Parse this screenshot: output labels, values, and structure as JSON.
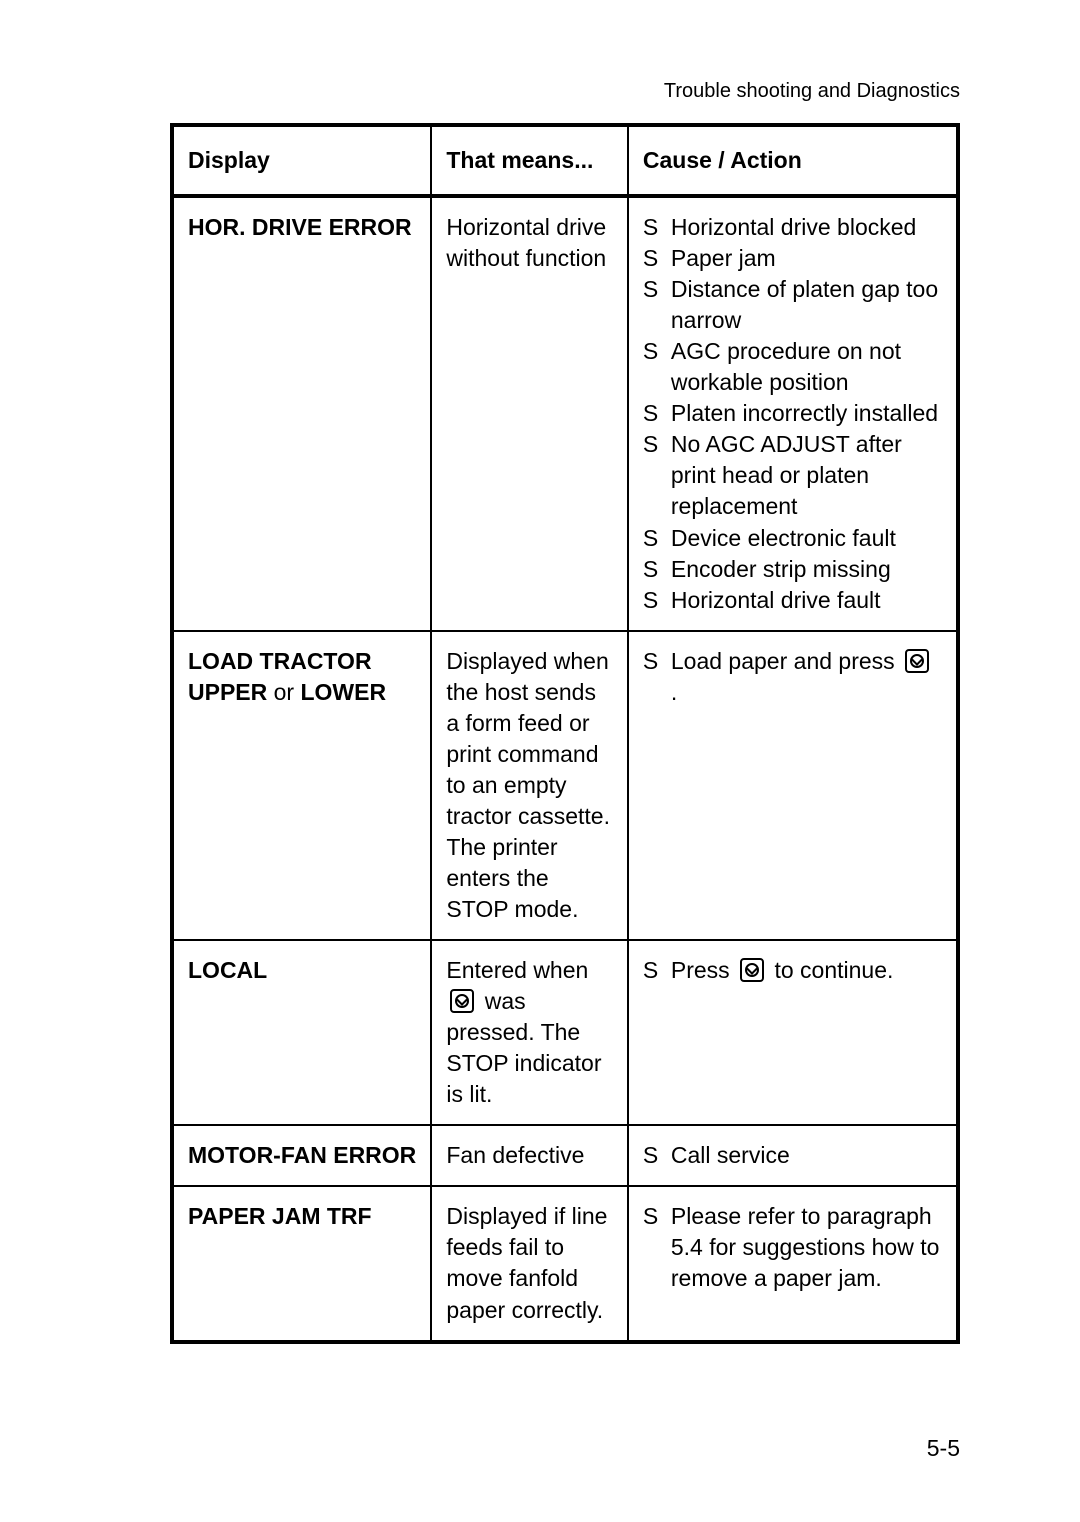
{
  "header": "Trouble shooting and Diagnostics",
  "columns": {
    "c1": "Display",
    "c2": "That means...",
    "c3": "Cause / Action"
  },
  "bullet_prefix": "S",
  "rows": [
    {
      "display": [
        {
          "text": "HOR. DRIVE ERROR",
          "bold": true
        }
      ],
      "means_parts": [
        {
          "type": "text",
          "text": "Horizontal drive without function"
        }
      ],
      "actions": [
        {
          "parts": [
            {
              "type": "text",
              "text": "Horizontal drive blocked"
            }
          ]
        },
        {
          "parts": [
            {
              "type": "text",
              "text": "Paper jam"
            }
          ]
        },
        {
          "parts": [
            {
              "type": "text",
              "text": "Distance of platen gap too narrow"
            }
          ]
        },
        {
          "parts": [
            {
              "type": "text",
              "text": "AGC procedure on not workable position"
            }
          ]
        },
        {
          "parts": [
            {
              "type": "text",
              "text": "Platen incorrectly installed"
            }
          ]
        },
        {
          "parts": [
            {
              "type": "text",
              "text": "No AGC ADJUST after print head or platen replacement"
            }
          ]
        },
        {
          "parts": [
            {
              "type": "text",
              "text": "Device electronic fault"
            }
          ]
        },
        {
          "parts": [
            {
              "type": "text",
              "text": "Encoder strip missing"
            }
          ]
        },
        {
          "parts": [
            {
              "type": "text",
              "text": "Horizontal drive fault"
            }
          ]
        }
      ]
    },
    {
      "display": [
        {
          "text": "LOAD TRACTOR",
          "bold": true
        },
        {
          "text": "UPPER",
          "bold": true
        },
        {
          "text": " or ",
          "bold": false
        },
        {
          "text": "LOWER",
          "bold": true
        }
      ],
      "means_parts": [
        {
          "type": "text",
          "text": "Displayed when the host sends a form feed or print command to an empty tractor cassette. The printer enters the STOP mode."
        }
      ],
      "actions": [
        {
          "parts": [
            {
              "type": "text",
              "text": "Load paper and press "
            },
            {
              "type": "icon"
            },
            {
              "type": "text",
              "text": " ."
            }
          ]
        }
      ]
    },
    {
      "display": [
        {
          "text": "LOCAL",
          "bold": true
        }
      ],
      "means_parts": [
        {
          "type": "text",
          "text": "Entered when "
        },
        {
          "type": "icon"
        },
        {
          "type": "text",
          "text": " was pressed. The STOP indicator is lit."
        }
      ],
      "actions": [
        {
          "parts": [
            {
              "type": "text",
              "text": "Press "
            },
            {
              "type": "icon"
            },
            {
              "type": "text",
              "text": " to continue."
            }
          ]
        }
      ]
    },
    {
      "display": [
        {
          "text": "MOTOR-FAN ERROR",
          "bold": true
        }
      ],
      "means_parts": [
        {
          "type": "text",
          "text": "Fan defective"
        }
      ],
      "actions": [
        {
          "parts": [
            {
              "type": "text",
              "text": "Call service"
            }
          ]
        }
      ]
    },
    {
      "display": [
        {
          "text": "PAPER JAM TRF",
          "bold": true
        }
      ],
      "means_parts": [
        {
          "type": "text",
          "text": "Displayed if line feeds fail to move fanfold paper correctly."
        }
      ],
      "actions": [
        {
          "parts": [
            {
              "type": "text",
              "text": "Please refer to paragraph 5.4 for suggestions how to remove a paper jam."
            }
          ]
        }
      ]
    }
  ],
  "page_number": "5-5"
}
